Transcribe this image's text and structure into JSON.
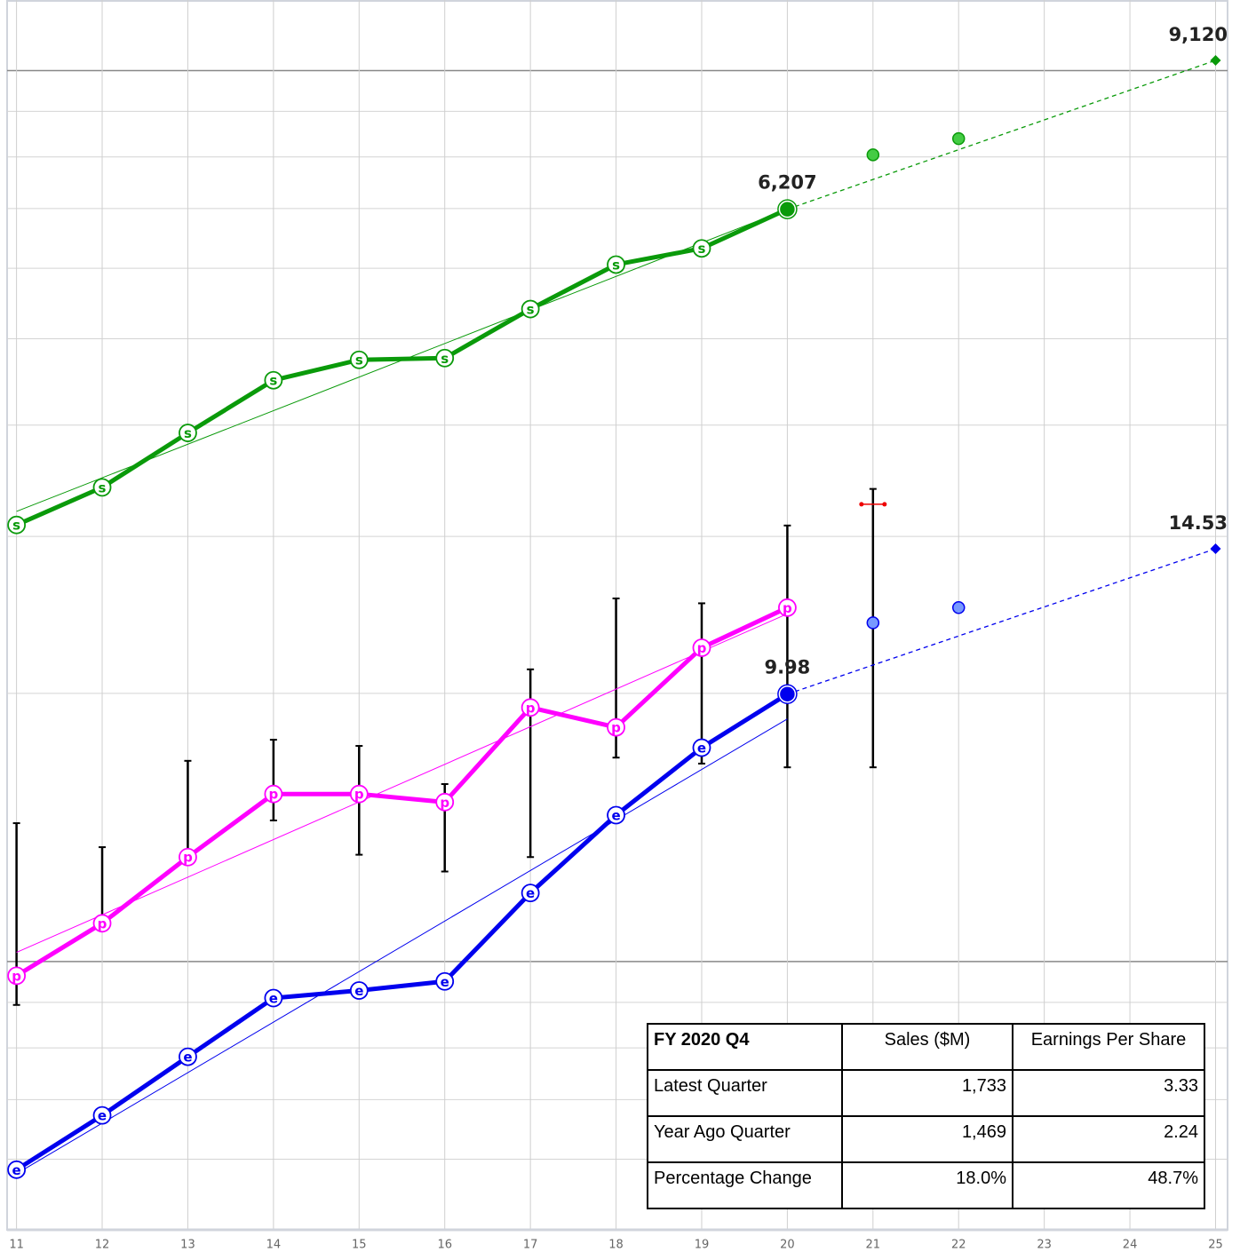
{
  "chart_data": {
    "type": "line",
    "x": [
      11,
      12,
      13,
      14,
      15,
      16,
      17,
      18,
      19,
      20
    ],
    "xlim": [
      10.89,
      25.14
    ],
    "xticks": [
      11,
      12,
      13,
      14,
      15,
      16,
      17,
      18,
      19,
      20,
      21,
      22,
      23,
      24,
      25
    ],
    "ylim": [
      2.5,
      60
    ],
    "y2lim": [
      444,
      10660
    ],
    "log": true,
    "grid": true,
    "ygrid": [
      3,
      3.5,
      4,
      4.5,
      5,
      10,
      15,
      20,
      25,
      30,
      35,
      40,
      45,
      50
    ],
    "ygrid_major": [
      5,
      50
    ],
    "series": [
      {
        "marker": "s",
        "color": "#0a9a0a",
        "axis": "y2",
        "end_filled": true,
        "values": [
          2745,
          3025,
          3482,
          3990,
          4206,
          4225,
          4796,
          5380,
          5610,
          6207
        ],
        "value_labels": [
          null,
          null,
          null,
          null,
          null,
          null,
          null,
          null,
          null,
          "6,207"
        ],
        "trend": [
          2843,
          6207
        ],
        "estimates": {
          "x": [
            21,
            22
          ],
          "values": [
            7145,
            7450
          ],
          "color": "#44cc44"
        },
        "projection": {
          "x": 25,
          "value": 9120,
          "value_label": "9,120"
        }
      },
      {
        "marker": "e",
        "color": "#0000ee",
        "end_filled": true,
        "values": [
          2.92,
          3.36,
          3.91,
          4.55,
          4.64,
          4.75,
          5.97,
          7.3,
          8.69,
          9.98
        ],
        "value_labels": [
          null,
          null,
          null,
          null,
          null,
          null,
          null,
          null,
          null,
          "9.98"
        ],
        "trend": [
          2.89,
          9.36
        ],
        "estimates": {
          "x": [
            21,
            22
          ],
          "values": [
            12.0,
            12.48
          ],
          "color": "#7799ff"
        },
        "projection": {
          "x": 25,
          "value": 14.53,
          "value_label": "14.53"
        }
      },
      {
        "marker": "p",
        "color": "#ff00ff",
        "end_filled": false,
        "values": [
          4.82,
          5.52,
          6.55,
          7.71,
          7.71,
          7.55,
          9.64,
          9.16,
          11.25,
          12.48
        ],
        "trend": [
          5.12,
          12.28
        ]
      }
    ],
    "range": {
      "x": [
        11,
        12,
        13,
        14,
        15,
        16,
        17,
        18,
        19,
        20,
        21
      ],
      "high": [
        7.15,
        6.72,
        8.4,
        8.87,
        8.73,
        7.91,
        10.64,
        12.78,
        12.62,
        15.43,
        16.96
      ],
      "low": [
        4.47,
        5.42,
        6.67,
        7.2,
        6.59,
        6.31,
        6.55,
        8.47,
        8.34,
        8.26,
        8.26
      ],
      "color": "#000000"
    },
    "consensus": {
      "x": 21,
      "value": 16.3,
      "color": "#ee0000"
    }
  },
  "table": {
    "header": [
      "FY 2020 Q4",
      "Sales ($M)",
      "Earnings Per Share"
    ],
    "rows": [
      [
        "Latest Quarter",
        "1,733",
        "3.33"
      ],
      [
        "Year Ago Quarter",
        "1,469",
        "2.24"
      ],
      [
        "Percentage Change",
        "18.0%",
        "48.7%"
      ]
    ]
  }
}
